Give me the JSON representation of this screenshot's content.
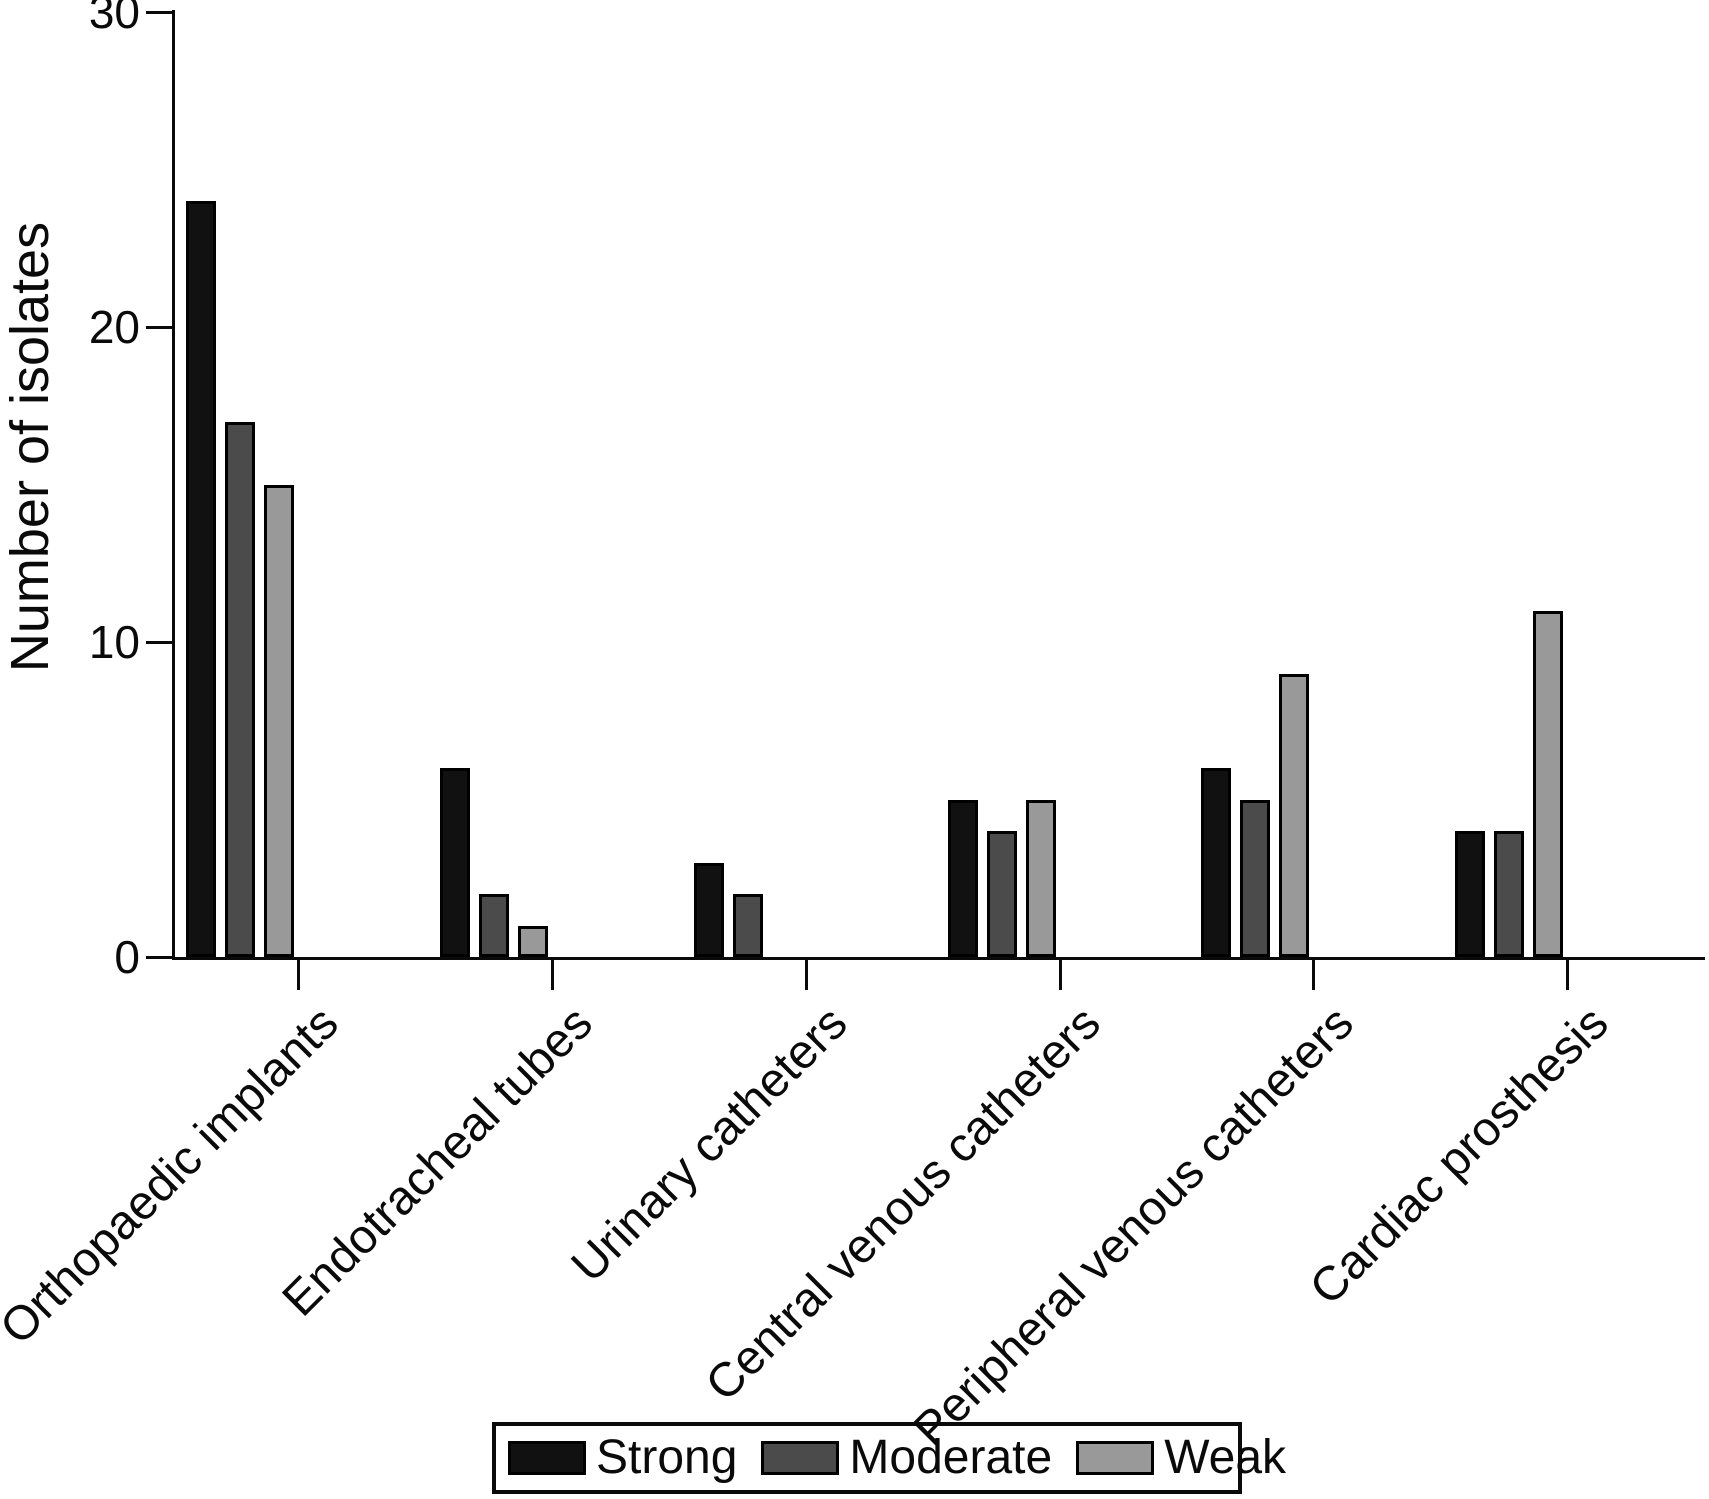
{
  "figure": {
    "ylabel": "Number of isolates"
  },
  "chart_data": {
    "type": "bar",
    "title": "",
    "xlabel": "",
    "ylabel": "Number of isolates",
    "categories": [
      "Orthopaedic implants",
      "Endotracheal tubes",
      "Urinary catheters",
      "Central venous catheters",
      "Peripheral venous catheters",
      "Cardiac prosthesis"
    ],
    "series": [
      {
        "name": "Strong",
        "color": "#111111",
        "values": [
          24,
          6,
          3,
          5,
          6,
          4
        ]
      },
      {
        "name": "Moderate",
        "color": "#4b4b4b",
        "values": [
          17,
          2,
          2,
          4,
          5,
          4
        ]
      },
      {
        "name": "Weak",
        "color": "#999999",
        "values": [
          15,
          1,
          0,
          5,
          9,
          11
        ]
      }
    ],
    "ylim": [
      0,
      30
    ],
    "yticks": [
      0,
      10,
      20,
      30
    ],
    "grid": false,
    "legend_position": "bottom",
    "axis_color": "#0a0a0a",
    "background": "#ffffff"
  }
}
